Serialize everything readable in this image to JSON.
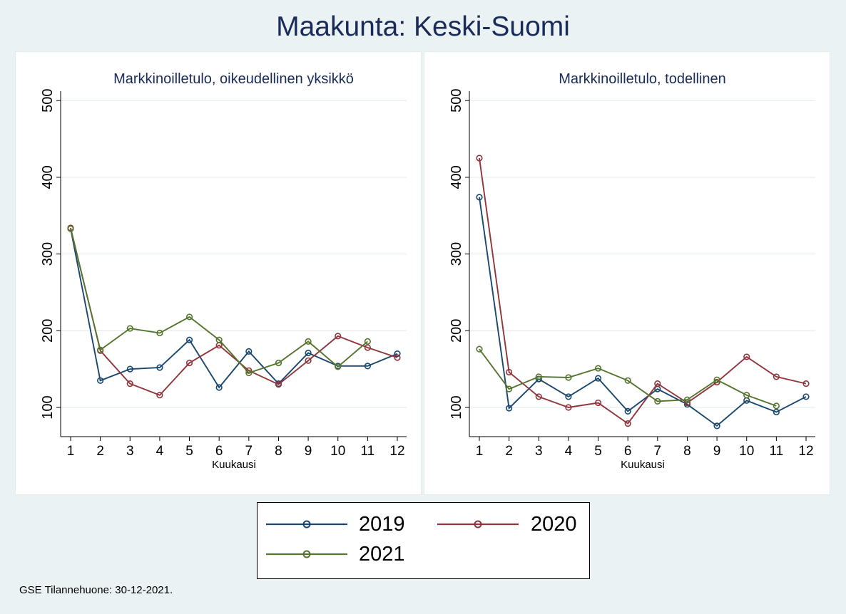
{
  "title": "Maakunta: Keski-Suomi",
  "legend": {
    "items": [
      {
        "label": "2019",
        "color": "#1a476f"
      },
      {
        "label": "2020",
        "color": "#90353b"
      },
      {
        "label": "2021",
        "color": "#55752f"
      }
    ]
  },
  "note": "GSE Tilannehuone: 30-12-2021.",
  "chart_data": [
    {
      "type": "line",
      "title": "Markkinoilletulo, oikeudellinen yksikkö",
      "xlabel": "Kuukausi",
      "ylabel": "",
      "x": [
        1,
        2,
        3,
        4,
        5,
        6,
        7,
        8,
        9,
        10,
        11,
        12
      ],
      "xticks": [
        "1",
        "2",
        "3",
        "4",
        "5",
        "6",
        "7",
        "8",
        "9",
        "10",
        "11",
        "12"
      ],
      "yticks": [
        "100",
        "200",
        "300",
        "400",
        "500"
      ],
      "ylim": [
        60,
        510
      ],
      "grid": true,
      "series": [
        {
          "name": "2019",
          "color": "#1a476f",
          "values": [
            333,
            135,
            150,
            152,
            188,
            126,
            173,
            131,
            171,
            154,
            154,
            170
          ]
        },
        {
          "name": "2020",
          "color": "#90353b",
          "values": [
            334,
            174,
            131,
            116,
            158,
            181,
            148,
            130,
            161,
            193,
            178,
            165
          ]
        },
        {
          "name": "2021",
          "color": "#55752f",
          "values": [
            333,
            175,
            203,
            197,
            218,
            188,
            145,
            158,
            186,
            153,
            186,
            null
          ]
        }
      ]
    },
    {
      "type": "line",
      "title": "Markkinoilletulo, todellinen",
      "xlabel": "Kuukausi",
      "ylabel": "",
      "x": [
        1,
        2,
        3,
        4,
        5,
        6,
        7,
        8,
        9,
        10,
        11,
        12
      ],
      "xticks": [
        "1",
        "2",
        "3",
        "4",
        "5",
        "6",
        "7",
        "8",
        "9",
        "10",
        "11",
        "12"
      ],
      "yticks": [
        "100",
        "200",
        "300",
        "400",
        "500"
      ],
      "ylim": [
        60,
        510
      ],
      "grid": true,
      "series": [
        {
          "name": "2019",
          "color": "#1a476f",
          "values": [
            374,
            99,
            137,
            114,
            138,
            95,
            124,
            104,
            76,
            109,
            94,
            114
          ]
        },
        {
          "name": "2020",
          "color": "#90353b",
          "values": [
            425,
            146,
            114,
            100,
            106,
            79,
            131,
            106,
            133,
            166,
            140,
            131
          ]
        },
        {
          "name": "2021",
          "color": "#55752f",
          "values": [
            176,
            124,
            140,
            139,
            151,
            135,
            108,
            110,
            136,
            116,
            102,
            null
          ]
        }
      ]
    }
  ]
}
